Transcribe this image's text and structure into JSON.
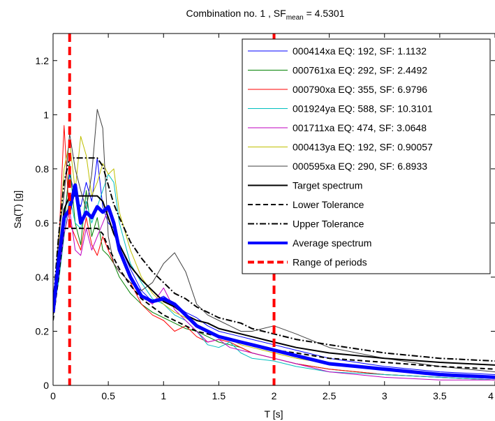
{
  "chart_data": {
    "type": "line",
    "title_main": "Combination no. 1 , SF",
    "title_sub": "mean",
    "title_value": " = 4.5301",
    "xlabel": "T [s]",
    "ylabel": "Sa(T) [g]",
    "xlim": [
      0,
      4
    ],
    "ylim": [
      0,
      1.3
    ],
    "xticks": [
      0,
      0.5,
      1,
      1.5,
      2,
      2.5,
      3,
      3.5,
      4
    ],
    "xtick_labels": [
      "0",
      "0.5",
      "1",
      "1.5",
      "2",
      "2.5",
      "3",
      "3.5",
      "4"
    ],
    "yticks": [
      0,
      0.2,
      0.4,
      0.6,
      0.8,
      1,
      1.2
    ],
    "ytick_labels": [
      "0",
      "0.2",
      "0.4",
      "0.6",
      "0.8",
      "1",
      "1.2"
    ],
    "legend_position": "top-right",
    "x": [
      0,
      0.05,
      0.1,
      0.15,
      0.2,
      0.25,
      0.3,
      0.35,
      0.4,
      0.45,
      0.5,
      0.55,
      0.6,
      0.7,
      0.8,
      0.9,
      1.0,
      1.1,
      1.2,
      1.3,
      1.4,
      1.5,
      1.6,
      1.7,
      1.8,
      2.0,
      2.2,
      2.5,
      3.0,
      3.5,
      4.0
    ],
    "series": [
      {
        "name": "000414xa EQ: 192, SF: 1.1132",
        "color": "#0000ff",
        "width": 1,
        "dash": "",
        "values": [
          0.27,
          0.42,
          0.62,
          0.78,
          0.7,
          0.66,
          0.75,
          0.68,
          0.84,
          0.66,
          0.6,
          0.58,
          0.52,
          0.43,
          0.35,
          0.31,
          0.33,
          0.3,
          0.27,
          0.25,
          0.22,
          0.2,
          0.19,
          0.18,
          0.17,
          0.15,
          0.13,
          0.1,
          0.07,
          0.05,
          0.04
        ]
      },
      {
        "name": "000761xa EQ: 292, SF: 2.4492",
        "color": "#008000",
        "width": 1,
        "dash": "",
        "values": [
          0.27,
          0.45,
          0.58,
          0.82,
          0.6,
          0.52,
          0.72,
          0.55,
          0.62,
          0.5,
          0.48,
          0.45,
          0.4,
          0.34,
          0.3,
          0.27,
          0.25,
          0.23,
          0.21,
          0.2,
          0.18,
          0.16,
          0.15,
          0.14,
          0.12,
          0.1,
          0.08,
          0.06,
          0.04,
          0.03,
          0.02
        ]
      },
      {
        "name": "000790xa EQ: 355, SF: 6.9796",
        "color": "#ff0000",
        "width": 1,
        "dash": "",
        "values": [
          0.27,
          0.5,
          0.96,
          0.6,
          0.55,
          0.5,
          0.62,
          0.52,
          0.48,
          0.55,
          0.5,
          0.45,
          0.42,
          0.38,
          0.3,
          0.26,
          0.24,
          0.2,
          0.22,
          0.18,
          0.16,
          0.17,
          0.16,
          0.14,
          0.12,
          0.1,
          0.08,
          0.06,
          0.04,
          0.03,
          0.02
        ]
      },
      {
        "name": "001924ya EQ: 588, SF: 10.3101",
        "color": "#00bfbf",
        "width": 1,
        "dash": "",
        "values": [
          0.27,
          0.38,
          0.55,
          0.7,
          0.6,
          0.58,
          0.68,
          0.6,
          0.66,
          0.72,
          0.78,
          0.75,
          0.6,
          0.45,
          0.38,
          0.32,
          0.3,
          0.26,
          0.24,
          0.2,
          0.15,
          0.14,
          0.16,
          0.12,
          0.1,
          0.09,
          0.07,
          0.05,
          0.04,
          0.03,
          0.02
        ]
      },
      {
        "name": "001711xa EQ: 474, SF: 3.0648",
        "color": "#bf00bf",
        "width": 1,
        "dash": "",
        "values": [
          0.27,
          0.4,
          0.56,
          0.65,
          0.5,
          0.48,
          0.58,
          0.5,
          0.55,
          0.6,
          0.65,
          0.58,
          0.5,
          0.4,
          0.33,
          0.3,
          0.36,
          0.28,
          0.24,
          0.2,
          0.16,
          0.17,
          0.14,
          0.13,
          0.12,
          0.1,
          0.08,
          0.05,
          0.03,
          0.02,
          0.02
        ]
      },
      {
        "name": "000413ya EQ: 192, SF: 0.90057",
        "color": "#bfbf00",
        "width": 1,
        "dash": "",
        "values": [
          0.27,
          0.5,
          0.8,
          0.9,
          0.72,
          0.92,
          0.85,
          0.7,
          0.75,
          0.82,
          0.78,
          0.8,
          0.64,
          0.5,
          0.4,
          0.34,
          0.3,
          0.27,
          0.25,
          0.22,
          0.2,
          0.18,
          0.17,
          0.15,
          0.14,
          0.12,
          0.1,
          0.08,
          0.06,
          0.04,
          0.03
        ]
      },
      {
        "name": "000595xa EQ: 290, SF: 6.8933",
        "color": "#404040",
        "width": 1,
        "dash": "",
        "values": [
          0.27,
          0.55,
          0.7,
          0.93,
          0.8,
          0.72,
          0.65,
          0.78,
          1.02,
          0.95,
          0.55,
          0.45,
          0.42,
          0.38,
          0.35,
          0.38,
          0.45,
          0.49,
          0.42,
          0.3,
          0.26,
          0.24,
          0.22,
          0.2,
          0.2,
          0.22,
          0.19,
          0.14,
          0.1,
          0.07,
          0.05
        ]
      },
      {
        "name": "Target spectrum",
        "color": "#000000",
        "width": 2,
        "dash": "",
        "values": [
          0.26,
          0.45,
          0.65,
          0.7,
          0.7,
          0.7,
          0.7,
          0.7,
          0.7,
          0.68,
          0.62,
          0.56,
          0.52,
          0.44,
          0.39,
          0.35,
          0.31,
          0.29,
          0.26,
          0.24,
          0.23,
          0.21,
          0.2,
          0.19,
          0.18,
          0.16,
          0.14,
          0.12,
          0.1,
          0.085,
          0.075
        ]
      },
      {
        "name": "Lower Tolerance",
        "color": "#000000",
        "width": 2,
        "dash": "7,4",
        "values": [
          0.24,
          0.4,
          0.58,
          0.58,
          0.58,
          0.58,
          0.58,
          0.58,
          0.58,
          0.56,
          0.51,
          0.47,
          0.43,
          0.37,
          0.32,
          0.29,
          0.26,
          0.24,
          0.22,
          0.2,
          0.19,
          0.18,
          0.17,
          0.16,
          0.15,
          0.13,
          0.12,
          0.1,
          0.085,
          0.07,
          0.06
        ]
      },
      {
        "name": "Upper Tolerance",
        "color": "#000000",
        "width": 2,
        "dash": "9,3,2,3",
        "values": [
          0.3,
          0.55,
          0.75,
          0.84,
          0.84,
          0.84,
          0.84,
          0.84,
          0.84,
          0.81,
          0.74,
          0.67,
          0.62,
          0.53,
          0.47,
          0.42,
          0.38,
          0.34,
          0.32,
          0.29,
          0.27,
          0.25,
          0.24,
          0.23,
          0.21,
          0.19,
          0.17,
          0.15,
          0.12,
          0.1,
          0.09
        ]
      },
      {
        "name": "Average spectrum",
        "color": "#0000ff",
        "width": 5,
        "dash": "",
        "values": [
          0.27,
          0.46,
          0.62,
          0.65,
          0.74,
          0.6,
          0.64,
          0.62,
          0.66,
          0.64,
          0.66,
          0.6,
          0.5,
          0.4,
          0.33,
          0.31,
          0.32,
          0.3,
          0.26,
          0.22,
          0.2,
          0.18,
          0.17,
          0.16,
          0.15,
          0.13,
          0.11,
          0.08,
          0.06,
          0.04,
          0.03
        ]
      }
    ],
    "period_range": {
      "name": "Range of periods",
      "color": "#ff0000",
      "x": [
        0.15,
        2.0
      ]
    }
  }
}
